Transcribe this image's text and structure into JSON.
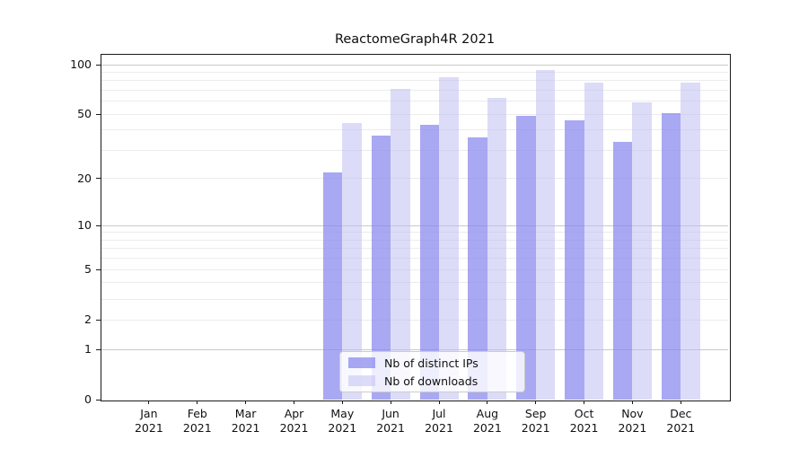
{
  "chart_data": {
    "type": "bar",
    "title": "ReactomeGraph4R 2021",
    "categories": [
      "Jan 2021",
      "Feb 2021",
      "Mar 2021",
      "Apr 2021",
      "May 2021",
      "Jun 2021",
      "Jul 2021",
      "Aug 2021",
      "Sep 2021",
      "Oct 2021",
      "Nov 2021",
      "Dec 2021"
    ],
    "x_tick_months": [
      "Jan",
      "Feb",
      "Mar",
      "Apr",
      "May",
      "Jun",
      "Jul",
      "Aug",
      "Sep",
      "Oct",
      "Nov",
      "Dec"
    ],
    "x_tick_year": "2021",
    "series": [
      {
        "name": "Nb of distinct IPs",
        "color": "#a8a8f3",
        "fill": "rgba(134,134,238,0.72)",
        "values": [
          0,
          0,
          0,
          0,
          22,
          37,
          43,
          36,
          49,
          46,
          34,
          51
        ]
      },
      {
        "name": "Nb of downloads",
        "color": "#dcdcf8",
        "fill": "rgba(190,190,242,0.54)",
        "values": [
          0,
          0,
          0,
          0,
          44,
          71,
          84,
          63,
          93,
          78,
          59,
          78
        ]
      }
    ],
    "yscale": "log1p",
    "ylim": [
      0,
      115
    ],
    "yticks": [
      0,
      1,
      2,
      5,
      10,
      20,
      50,
      100
    ],
    "grid_major_at": [
      1,
      10,
      100
    ],
    "grid_minor_at": [
      2,
      3,
      4,
      5,
      6,
      7,
      8,
      9,
      20,
      30,
      40,
      50,
      60,
      70,
      80,
      90
    ],
    "legend": {
      "position": "lower center",
      "entries": [
        "Nb of distinct IPs",
        "Nb of downloads"
      ]
    },
    "grid": "on",
    "background": "#ffffff",
    "xlabel": "",
    "ylabel": ""
  }
}
